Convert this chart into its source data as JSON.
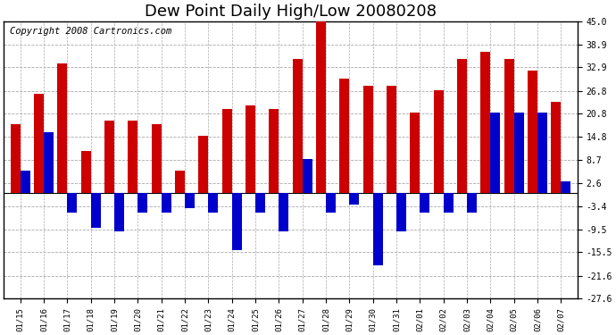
{
  "title": "Dew Point Daily High/Low 20080208",
  "copyright": "Copyright 2008 Cartronics.com",
  "dates": [
    "01/15",
    "01/16",
    "01/17",
    "01/18",
    "01/19",
    "01/20",
    "01/21",
    "01/22",
    "01/23",
    "01/24",
    "01/25",
    "01/26",
    "01/27",
    "01/28",
    "01/29",
    "01/30",
    "01/31",
    "02/01",
    "02/02",
    "02/03",
    "02/04",
    "02/05",
    "02/06",
    "02/07"
  ],
  "highs": [
    18,
    26,
    34,
    11,
    19,
    19,
    18,
    6,
    15,
    22,
    23,
    22,
    35,
    46,
    30,
    28,
    28,
    21,
    27,
    35,
    37,
    35,
    32,
    24
  ],
  "lows": [
    6,
    16,
    -5,
    -9,
    -10,
    -5,
    -5,
    -4,
    -5,
    -15,
    -5,
    -10,
    9,
    -5,
    -3,
    -19,
    -10,
    -5,
    -5,
    -5,
    21,
    21,
    21,
    3
  ],
  "high_color": "#cc0000",
  "low_color": "#0000cc",
  "bg_color": "#ffffff",
  "grid_color": "#aaaaaa",
  "ylim": [
    -27.6,
    45.0
  ],
  "yticks": [
    45.0,
    38.9,
    32.9,
    26.8,
    20.8,
    14.8,
    8.7,
    2.6,
    -3.4,
    -9.5,
    -15.5,
    -21.6,
    -27.6
  ],
  "bar_width": 0.42,
  "title_fontsize": 13,
  "copyright_fontsize": 7.5
}
